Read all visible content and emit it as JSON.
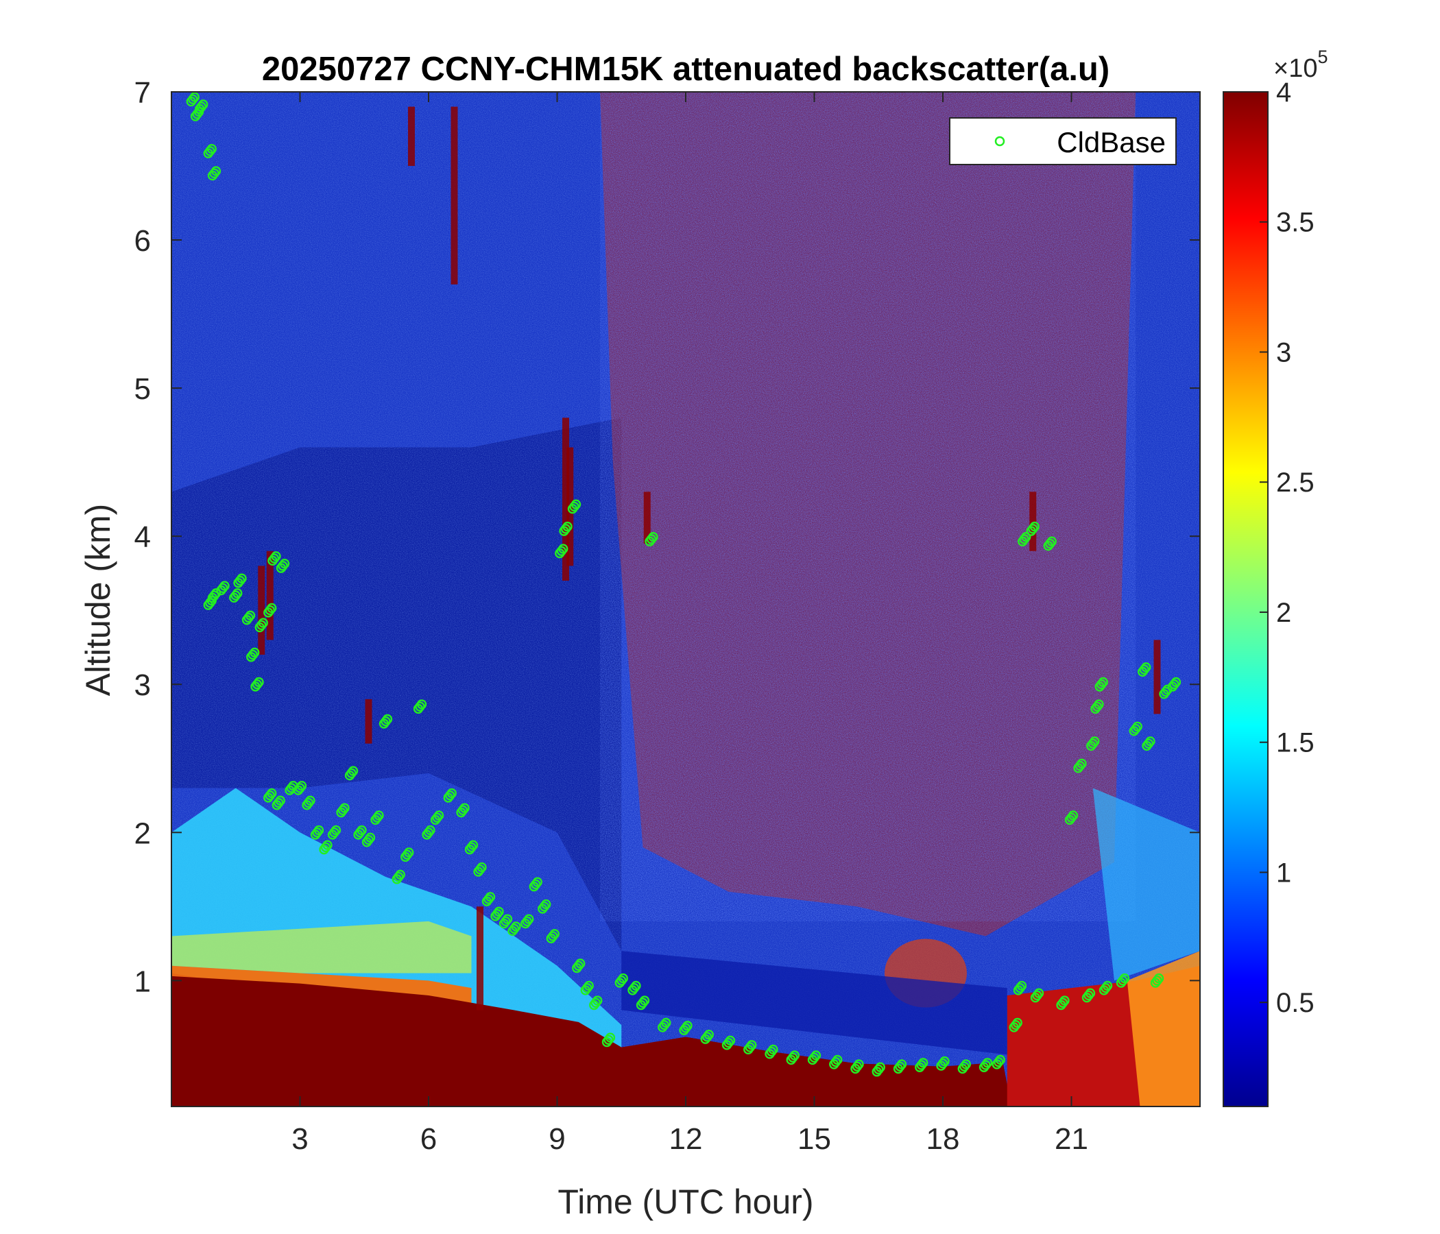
{
  "chart_data": {
    "type": "heatmap",
    "title": "20250727 CCNY-CHM15K attenuated backscatter(a.u)",
    "xlabel": "Time (UTC hour)",
    "ylabel": "Altitude (km)",
    "xlim": [
      0,
      24
    ],
    "ylim": [
      0.15,
      7
    ],
    "x_ticks": [
      3,
      6,
      9,
      12,
      15,
      18,
      21
    ],
    "x_tick_labels": [
      "3",
      "6",
      "9",
      "12",
      "15",
      "18",
      "21"
    ],
    "y_ticks": [
      1,
      2,
      3,
      4,
      5,
      6,
      7
    ],
    "y_tick_labels": [
      "1",
      "2",
      "3",
      "4",
      "5",
      "6",
      "7"
    ],
    "colorbar": {
      "colormap": "jet",
      "range": [
        10000,
        400000
      ],
      "ticks": [
        0.5,
        1,
        1.5,
        2,
        2.5,
        3,
        3.5,
        4
      ],
      "tick_labels": [
        "0.5",
        "1",
        "1.5",
        "2",
        "2.5",
        "3",
        "3.5",
        "4"
      ],
      "exponent_base": "×10",
      "exponent_power": "5"
    },
    "legend": {
      "position": "top-right",
      "entries": [
        "CldBase"
      ]
    },
    "series": [
      {
        "name": "CldBase",
        "marker": "circle",
        "color": "#22ee22",
        "points": [
          [
            0.5,
            6.95
          ],
          [
            0.6,
            6.85
          ],
          [
            0.7,
            6.9
          ],
          [
            0.9,
            6.6
          ],
          [
            1.0,
            6.45
          ],
          [
            0.9,
            3.55
          ],
          [
            1.0,
            3.6
          ],
          [
            1.2,
            3.65
          ],
          [
            1.5,
            3.6
          ],
          [
            1.6,
            3.7
          ],
          [
            1.8,
            3.45
          ],
          [
            1.9,
            3.2
          ],
          [
            2.0,
            3.0
          ],
          [
            2.1,
            3.4
          ],
          [
            2.3,
            3.5
          ],
          [
            2.4,
            3.85
          ],
          [
            2.6,
            3.8
          ],
          [
            2.3,
            2.25
          ],
          [
            2.5,
            2.2
          ],
          [
            2.8,
            2.3
          ],
          [
            3.0,
            2.3
          ],
          [
            3.2,
            2.2
          ],
          [
            3.4,
            2.0
          ],
          [
            3.6,
            1.9
          ],
          [
            3.8,
            2.0
          ],
          [
            4.0,
            2.15
          ],
          [
            4.2,
            2.4
          ],
          [
            4.4,
            2.0
          ],
          [
            4.6,
            1.95
          ],
          [
            4.8,
            2.1
          ],
          [
            5.0,
            2.75
          ],
          [
            5.3,
            1.7
          ],
          [
            5.5,
            1.85
          ],
          [
            5.8,
            2.85
          ],
          [
            6.0,
            2.0
          ],
          [
            6.2,
            2.1
          ],
          [
            6.5,
            2.25
          ],
          [
            6.8,
            2.15
          ],
          [
            7.0,
            1.9
          ],
          [
            7.2,
            1.75
          ],
          [
            7.4,
            1.55
          ],
          [
            7.6,
            1.45
          ],
          [
            7.8,
            1.4
          ],
          [
            8.0,
            1.35
          ],
          [
            8.3,
            1.4
          ],
          [
            8.5,
            1.65
          ],
          [
            8.7,
            1.5
          ],
          [
            8.9,
            1.3
          ],
          [
            9.1,
            3.9
          ],
          [
            9.2,
            4.05
          ],
          [
            9.4,
            4.2
          ],
          [
            9.5,
            1.1
          ],
          [
            9.7,
            0.95
          ],
          [
            9.9,
            0.85
          ],
          [
            10.2,
            0.6
          ],
          [
            10.5,
            1.0
          ],
          [
            10.8,
            0.95
          ],
          [
            11.0,
            0.85
          ],
          [
            11.2,
            3.98
          ],
          [
            11.5,
            0.7
          ],
          [
            12.0,
            0.68
          ],
          [
            12.5,
            0.62
          ],
          [
            13.0,
            0.58
          ],
          [
            13.5,
            0.55
          ],
          [
            14.0,
            0.52
          ],
          [
            14.5,
            0.48
          ],
          [
            15.0,
            0.48
          ],
          [
            15.5,
            0.45
          ],
          [
            16.0,
            0.42
          ],
          [
            16.5,
            0.4
          ],
          [
            17.0,
            0.42
          ],
          [
            17.5,
            0.43
          ],
          [
            18.0,
            0.44
          ],
          [
            18.5,
            0.42
          ],
          [
            19.0,
            0.43
          ],
          [
            19.3,
            0.45
          ],
          [
            19.7,
            0.7
          ],
          [
            19.8,
            0.95
          ],
          [
            19.9,
            3.98
          ],
          [
            20.1,
            4.05
          ],
          [
            20.2,
            0.9
          ],
          [
            20.5,
            3.95
          ],
          [
            20.8,
            0.85
          ],
          [
            21.0,
            2.1
          ],
          [
            21.2,
            2.45
          ],
          [
            21.4,
            0.9
          ],
          [
            21.5,
            2.6
          ],
          [
            21.6,
            2.85
          ],
          [
            21.7,
            3.0
          ],
          [
            21.8,
            0.95
          ],
          [
            22.2,
            1.0
          ],
          [
            22.5,
            2.7
          ],
          [
            22.7,
            3.1
          ],
          [
            22.8,
            2.6
          ],
          [
            23.0,
            1.0
          ],
          [
            23.2,
            2.95
          ],
          [
            23.4,
            3.0
          ]
        ]
      }
    ]
  }
}
